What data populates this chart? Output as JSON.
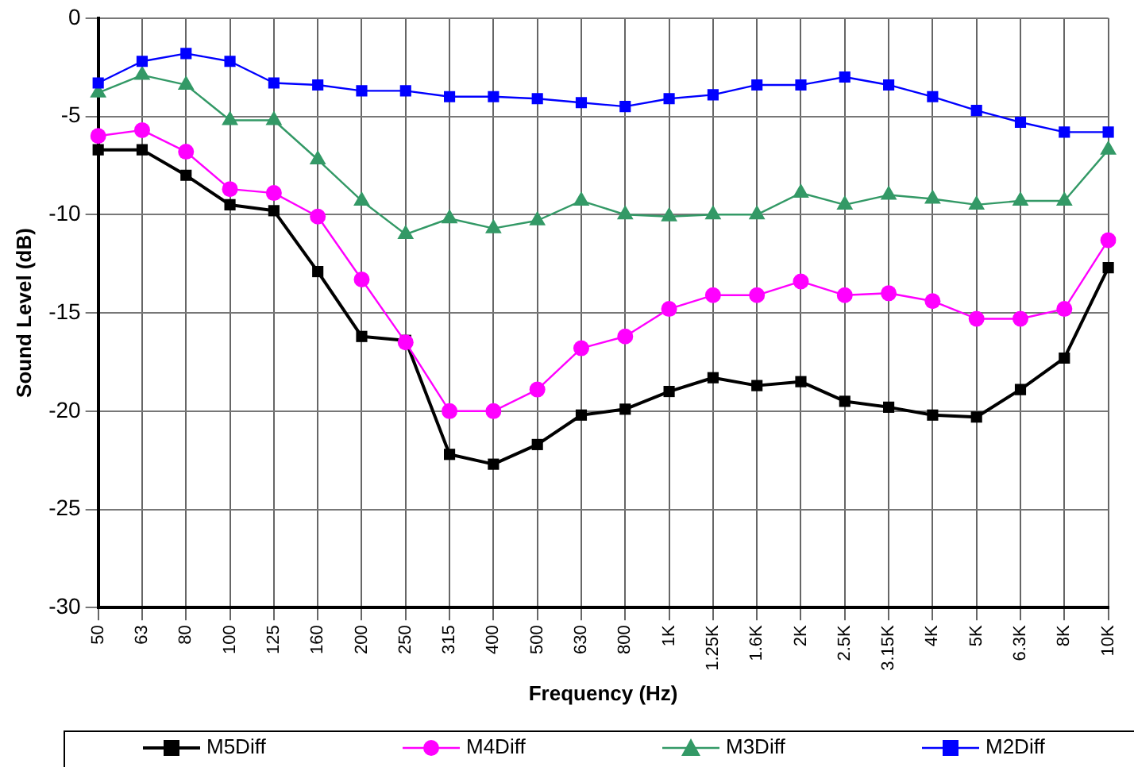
{
  "chart_data": {
    "type": "line",
    "xlabel": "Frequency (Hz)",
    "ylabel": "Sound Level (dB)",
    "categories": [
      "50",
      "63",
      "80",
      "100",
      "125",
      "160",
      "200",
      "250",
      "315",
      "400",
      "500",
      "630",
      "800",
      "1K",
      "1.25K",
      "1.6K",
      "2K",
      "2.5K",
      "3.15K",
      "4K",
      "5K",
      "6.3K",
      "8K",
      "10K"
    ],
    "series": [
      {
        "name": "M5Diff",
        "color": "#000000",
        "marker": "square",
        "values": [
          -6.7,
          -6.7,
          -8.0,
          -9.5,
          -9.8,
          -12.9,
          -16.2,
          -16.4,
          -22.2,
          -22.7,
          -21.7,
          -20.2,
          -19.9,
          -19.0,
          -18.3,
          -18.7,
          -18.5,
          -19.5,
          -19.8,
          -20.2,
          -20.3,
          -18.9,
          -17.3,
          -12.7
        ]
      },
      {
        "name": "M4Diff",
        "color": "#ff00ff",
        "marker": "circle",
        "values": [
          -6.0,
          -5.7,
          -6.8,
          -8.7,
          -8.9,
          -10.1,
          -13.3,
          -16.5,
          -20.0,
          -20.0,
          -18.9,
          -16.8,
          -16.2,
          -14.8,
          -14.1,
          -14.1,
          -13.4,
          -14.1,
          -14.0,
          -14.4,
          -15.3,
          -15.3,
          -14.8,
          -11.3
        ]
      },
      {
        "name": "M3Diff",
        "color": "#339966",
        "marker": "triangle",
        "values": [
          -3.8,
          -2.9,
          -3.4,
          -5.2,
          -5.2,
          -7.2,
          -9.3,
          -11.0,
          -10.2,
          -10.7,
          -10.3,
          -9.3,
          -10.0,
          -10.1,
          -10.0,
          -10.0,
          -8.9,
          -9.5,
          -9.0,
          -9.2,
          -9.5,
          -9.3,
          -9.3,
          -6.7
        ]
      },
      {
        "name": "M2Diff",
        "color": "#0000ff",
        "marker": "square",
        "values": [
          -3.3,
          -2.2,
          -1.8,
          -2.2,
          -3.3,
          -3.4,
          -3.7,
          -3.7,
          -4.0,
          -4.0,
          -4.1,
          -4.3,
          -4.5,
          -4.1,
          -3.9,
          -3.4,
          -3.4,
          -3.0,
          -3.4,
          -4.0,
          -4.7,
          -5.3,
          -5.8,
          -5.8
        ]
      }
    ],
    "ylim": [
      -30,
      0
    ],
    "yticks": [
      -30,
      -25,
      -20,
      -15,
      -10,
      -5,
      0
    ],
    "grid": true,
    "legend": "bottom"
  }
}
